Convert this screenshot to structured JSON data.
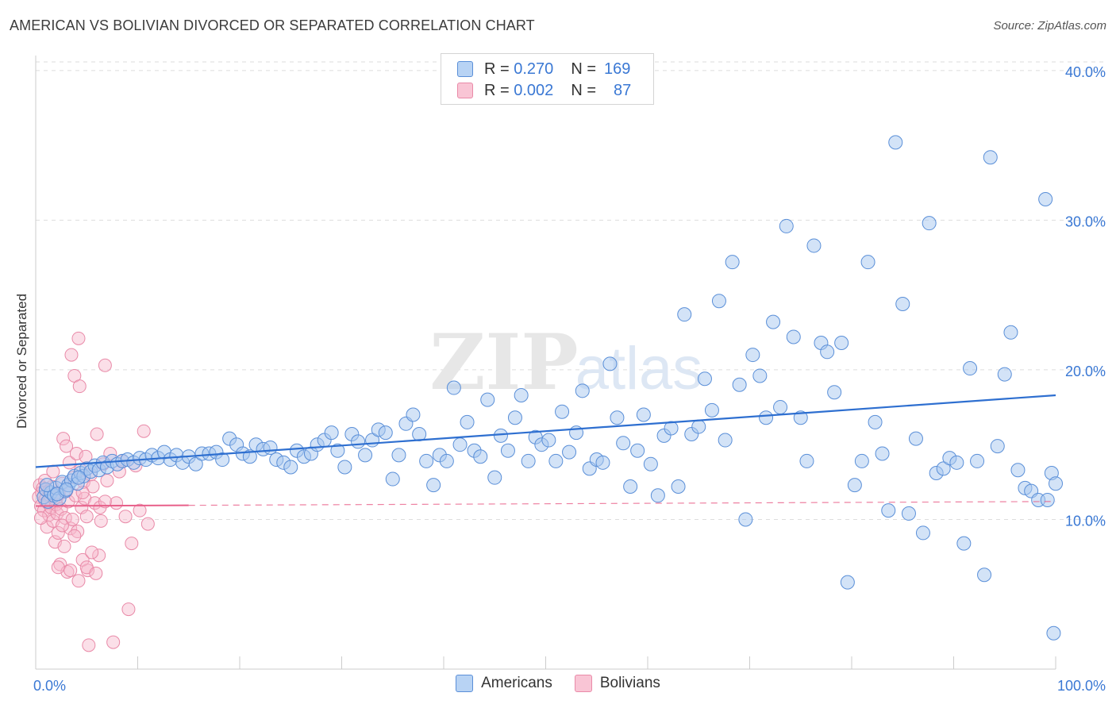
{
  "title": "AMERICAN VS BOLIVIAN DIVORCED OR SEPARATED CORRELATION CHART",
  "source": "Source: ZipAtlas.com",
  "watermark": {
    "zip": "ZIP",
    "atlas": "atlas"
  },
  "legend_top": {
    "rows": [
      {
        "r_label": "R =",
        "r_value": "0.270",
        "n_label": "N =",
        "n_value": "169"
      },
      {
        "r_label": "R =",
        "r_value": "0.002",
        "n_label": "N =",
        "n_value": "87"
      }
    ]
  },
  "legend_bottom": {
    "americans": "Americans",
    "bolivians": "Bolivians"
  },
  "colors": {
    "american_fill": "#a8c8f0",
    "american_stroke": "#5a8fd8",
    "american_line": "#2e6fd0",
    "bolivian_fill": "#f7b8cc",
    "bolivian_stroke": "#e98aa8",
    "bolivian_line": "#e8608a",
    "tick_label": "#3a78d4",
    "grid": "#dddddd"
  },
  "chart_data": {
    "type": "scatter",
    "xlabel": "",
    "ylabel": "Divorced or Separated",
    "xlim": [
      0,
      100
    ],
    "ylim": [
      0,
      41
    ],
    "x_tick_labels": [
      "0.0%",
      "100.0%"
    ],
    "y_ticks": [
      10,
      20,
      30,
      40
    ],
    "y_tick_labels": [
      "10.0%",
      "20.0%",
      "30.0%",
      "40.0%"
    ],
    "grid": true,
    "legend_placement": "top-center",
    "series": [
      {
        "name": "Americans",
        "R": 0.27,
        "N": 169,
        "trend": {
          "x": [
            0,
            100
          ],
          "y": [
            13.5,
            18.3
          ]
        },
        "points": [
          [
            0.8,
            11.5
          ],
          [
            1.0,
            12.0
          ],
          [
            1.2,
            11.2
          ],
          [
            1.5,
            11.8
          ],
          [
            1.8,
            11.6
          ],
          [
            2.0,
            12.1
          ],
          [
            2.3,
            11.4
          ],
          [
            2.6,
            12.5
          ],
          [
            2.9,
            11.9
          ],
          [
            3.2,
            12.3
          ],
          [
            3.5,
            12.6
          ],
          [
            3.8,
            12.9
          ],
          [
            4.1,
            12.4
          ],
          [
            4.4,
            13.1
          ],
          [
            4.7,
            12.9
          ],
          [
            5.0,
            13.4
          ],
          [
            5.4,
            13.2
          ],
          [
            5.8,
            13.6
          ],
          [
            6.2,
            13.3
          ],
          [
            6.6,
            13.8
          ],
          [
            7.0,
            13.5
          ],
          [
            7.5,
            13.9
          ],
          [
            8.0,
            13.7
          ],
          [
            8.5,
            13.9
          ],
          [
            9.0,
            14.0
          ],
          [
            9.6,
            13.8
          ],
          [
            10.2,
            14.1
          ],
          [
            10.8,
            14.0
          ],
          [
            11.4,
            14.3
          ],
          [
            12.0,
            14.1
          ],
          [
            12.6,
            14.5
          ],
          [
            13.2,
            14.0
          ],
          [
            13.8,
            14.3
          ],
          [
            14.4,
            13.8
          ],
          [
            15.0,
            14.2
          ],
          [
            15.7,
            13.7
          ],
          [
            16.3,
            14.4
          ],
          [
            17.0,
            14.4
          ],
          [
            17.7,
            14.5
          ],
          [
            18.3,
            14.0
          ],
          [
            19.0,
            15.4
          ],
          [
            19.7,
            15.0
          ],
          [
            20.3,
            14.4
          ],
          [
            21.0,
            14.2
          ],
          [
            21.6,
            15.0
          ],
          [
            22.3,
            14.7
          ],
          [
            23.0,
            14.8
          ],
          [
            23.6,
            14.0
          ],
          [
            24.3,
            13.8
          ],
          [
            25.0,
            13.5
          ],
          [
            25.6,
            14.6
          ],
          [
            26.3,
            14.2
          ],
          [
            27.0,
            14.4
          ],
          [
            27.6,
            15.0
          ],
          [
            28.3,
            15.3
          ],
          [
            29.0,
            15.8
          ],
          [
            29.6,
            14.6
          ],
          [
            30.3,
            13.5
          ],
          [
            31.0,
            15.7
          ],
          [
            31.6,
            15.2
          ],
          [
            32.3,
            14.3
          ],
          [
            33.0,
            15.3
          ],
          [
            33.6,
            16.0
          ],
          [
            34.3,
            15.8
          ],
          [
            35.0,
            12.7
          ],
          [
            35.6,
            14.3
          ],
          [
            36.3,
            16.4
          ],
          [
            37.0,
            17.0
          ],
          [
            37.6,
            15.7
          ],
          [
            38.3,
            13.9
          ],
          [
            39.0,
            12.3
          ],
          [
            39.6,
            14.3
          ],
          [
            40.3,
            13.9
          ],
          [
            41.0,
            18.8
          ],
          [
            41.6,
            15.0
          ],
          [
            42.3,
            16.5
          ],
          [
            43.0,
            14.6
          ],
          [
            43.6,
            14.2
          ],
          [
            44.3,
            18.0
          ],
          [
            45.0,
            12.8
          ],
          [
            45.6,
            15.6
          ],
          [
            46.3,
            14.6
          ],
          [
            47.0,
            16.8
          ],
          [
            47.6,
            18.3
          ],
          [
            48.3,
            13.9
          ],
          [
            49.0,
            15.5
          ],
          [
            49.6,
            15.0
          ],
          [
            50.3,
            15.3
          ],
          [
            51.0,
            13.9
          ],
          [
            51.6,
            17.2
          ],
          [
            52.3,
            14.5
          ],
          [
            53.0,
            15.8
          ],
          [
            53.6,
            18.6
          ],
          [
            54.3,
            13.4
          ],
          [
            55.0,
            14.0
          ],
          [
            55.6,
            13.8
          ],
          [
            56.3,
            20.4
          ],
          [
            57.0,
            16.8
          ],
          [
            57.6,
            15.1
          ],
          [
            58.3,
            12.2
          ],
          [
            59.0,
            14.6
          ],
          [
            59.6,
            17.0
          ],
          [
            60.3,
            13.7
          ],
          [
            61.0,
            11.6
          ],
          [
            61.6,
            15.6
          ],
          [
            62.3,
            16.1
          ],
          [
            63.0,
            12.2
          ],
          [
            63.6,
            23.7
          ],
          [
            64.3,
            15.7
          ],
          [
            65.0,
            16.2
          ],
          [
            65.6,
            19.4
          ],
          [
            66.3,
            17.3
          ],
          [
            67.0,
            24.6
          ],
          [
            67.6,
            15.3
          ],
          [
            68.3,
            27.2
          ],
          [
            69.0,
            19.0
          ],
          [
            69.6,
            10.0
          ],
          [
            70.3,
            21.0
          ],
          [
            71.0,
            19.6
          ],
          [
            71.6,
            16.8
          ],
          [
            72.3,
            23.2
          ],
          [
            73.0,
            17.5
          ],
          [
            73.6,
            29.6
          ],
          [
            74.3,
            22.2
          ],
          [
            75.0,
            16.8
          ],
          [
            75.6,
            13.9
          ],
          [
            76.3,
            28.3
          ],
          [
            77.0,
            21.8
          ],
          [
            77.6,
            21.2
          ],
          [
            78.3,
            18.5
          ],
          [
            79.0,
            21.8
          ],
          [
            79.6,
            5.8
          ],
          [
            80.3,
            12.3
          ],
          [
            81.0,
            13.9
          ],
          [
            81.6,
            27.2
          ],
          [
            82.3,
            16.5
          ],
          [
            83.0,
            14.4
          ],
          [
            83.6,
            10.6
          ],
          [
            84.3,
            35.2
          ],
          [
            85.0,
            24.4
          ],
          [
            85.6,
            10.4
          ],
          [
            86.3,
            15.4
          ],
          [
            87.0,
            9.1
          ],
          [
            87.6,
            29.8
          ],
          [
            88.3,
            13.1
          ],
          [
            89.0,
            13.4
          ],
          [
            89.6,
            14.1
          ],
          [
            90.3,
            13.8
          ],
          [
            91.0,
            8.4
          ],
          [
            91.6,
            20.1
          ],
          [
            92.3,
            13.9
          ],
          [
            93.0,
            6.3
          ],
          [
            93.6,
            34.2
          ],
          [
            94.3,
            14.9
          ],
          [
            95.0,
            19.7
          ],
          [
            95.6,
            22.5
          ],
          [
            96.3,
            13.3
          ],
          [
            97.0,
            12.1
          ],
          [
            97.6,
            11.9
          ],
          [
            98.3,
            11.3
          ],
          [
            99.0,
            31.4
          ],
          [
            99.6,
            13.1
          ],
          [
            100.0,
            12.4
          ],
          [
            99.8,
            2.4
          ],
          [
            99.2,
            11.3
          ],
          [
            1.1,
            12.3
          ],
          [
            2.1,
            11.7
          ],
          [
            3.0,
            12.0
          ],
          [
            4.2,
            12.8
          ]
        ]
      },
      {
        "name": "Bolivians",
        "R": 0.002,
        "N": 87,
        "trend": {
          "x": [
            0,
            100
          ],
          "y": [
            10.9,
            11.2
          ]
        },
        "trend_solid_until_x": 15,
        "points": [
          [
            0.3,
            11.5
          ],
          [
            0.4,
            12.3
          ],
          [
            0.5,
            10.9
          ],
          [
            0.6,
            11.8
          ],
          [
            0.7,
            12.1
          ],
          [
            0.8,
            10.6
          ],
          [
            0.9,
            11.3
          ],
          [
            1.0,
            12.0
          ],
          [
            1.1,
            9.5
          ],
          [
            1.2,
            11.1
          ],
          [
            1.3,
            10.3
          ],
          [
            1.4,
            11.6
          ],
          [
            1.5,
            10.8
          ],
          [
            1.6,
            12.2
          ],
          [
            1.7,
            9.9
          ],
          [
            1.8,
            11.4
          ],
          [
            1.9,
            8.5
          ],
          [
            2.0,
            11.0
          ],
          [
            2.1,
            10.4
          ],
          [
            2.2,
            9.1
          ],
          [
            2.3,
            11.7
          ],
          [
            2.4,
            7.0
          ],
          [
            2.5,
            10.7
          ],
          [
            2.6,
            12.4
          ],
          [
            2.7,
            15.4
          ],
          [
            2.8,
            8.2
          ],
          [
            2.9,
            10.1
          ],
          [
            3.0,
            14.9
          ],
          [
            3.1,
            6.5
          ],
          [
            3.2,
            11.2
          ],
          [
            3.3,
            13.8
          ],
          [
            3.4,
            9.4
          ],
          [
            3.5,
            21.0
          ],
          [
            3.6,
            10.0
          ],
          [
            3.7,
            12.8
          ],
          [
            3.8,
            19.6
          ],
          [
            3.9,
            11.6
          ],
          [
            4.0,
            14.4
          ],
          [
            4.1,
            9.2
          ],
          [
            4.2,
            22.1
          ],
          [
            4.3,
            18.9
          ],
          [
            4.4,
            13.3
          ],
          [
            4.5,
            10.8
          ],
          [
            4.6,
            7.3
          ],
          [
            4.7,
            12.5
          ],
          [
            4.8,
            11.4
          ],
          [
            4.9,
            14.2
          ],
          [
            5.0,
            10.2
          ],
          [
            5.1,
            6.6
          ],
          [
            5.2,
            1.6
          ],
          [
            5.4,
            13.0
          ],
          [
            5.6,
            12.2
          ],
          [
            5.8,
            11.1
          ],
          [
            6.0,
            15.7
          ],
          [
            6.2,
            7.6
          ],
          [
            6.4,
            9.9
          ],
          [
            6.6,
            13.7
          ],
          [
            6.8,
            20.3
          ],
          [
            7.0,
            12.6
          ],
          [
            7.3,
            14.4
          ],
          [
            7.6,
            1.8
          ],
          [
            7.9,
            11.1
          ],
          [
            8.2,
            13.2
          ],
          [
            8.5,
            13.9
          ],
          [
            8.8,
            10.2
          ],
          [
            9.1,
            4.0
          ],
          [
            9.4,
            8.4
          ],
          [
            9.8,
            13.6
          ],
          [
            10.2,
            10.6
          ],
          [
            10.6,
            15.9
          ],
          [
            11.0,
            9.7
          ],
          [
            0.5,
            10.1
          ],
          [
            0.9,
            12.6
          ],
          [
            1.3,
            11.9
          ],
          [
            1.7,
            13.2
          ],
          [
            2.2,
            6.8
          ],
          [
            2.6,
            9.6
          ],
          [
            3.0,
            11.9
          ],
          [
            3.4,
            6.6
          ],
          [
            3.8,
            8.9
          ],
          [
            4.2,
            5.9
          ],
          [
            4.6,
            11.8
          ],
          [
            5.0,
            6.8
          ],
          [
            5.5,
            7.8
          ],
          [
            5.9,
            6.4
          ],
          [
            6.3,
            10.8
          ],
          [
            6.8,
            11.2
          ]
        ]
      }
    ]
  }
}
